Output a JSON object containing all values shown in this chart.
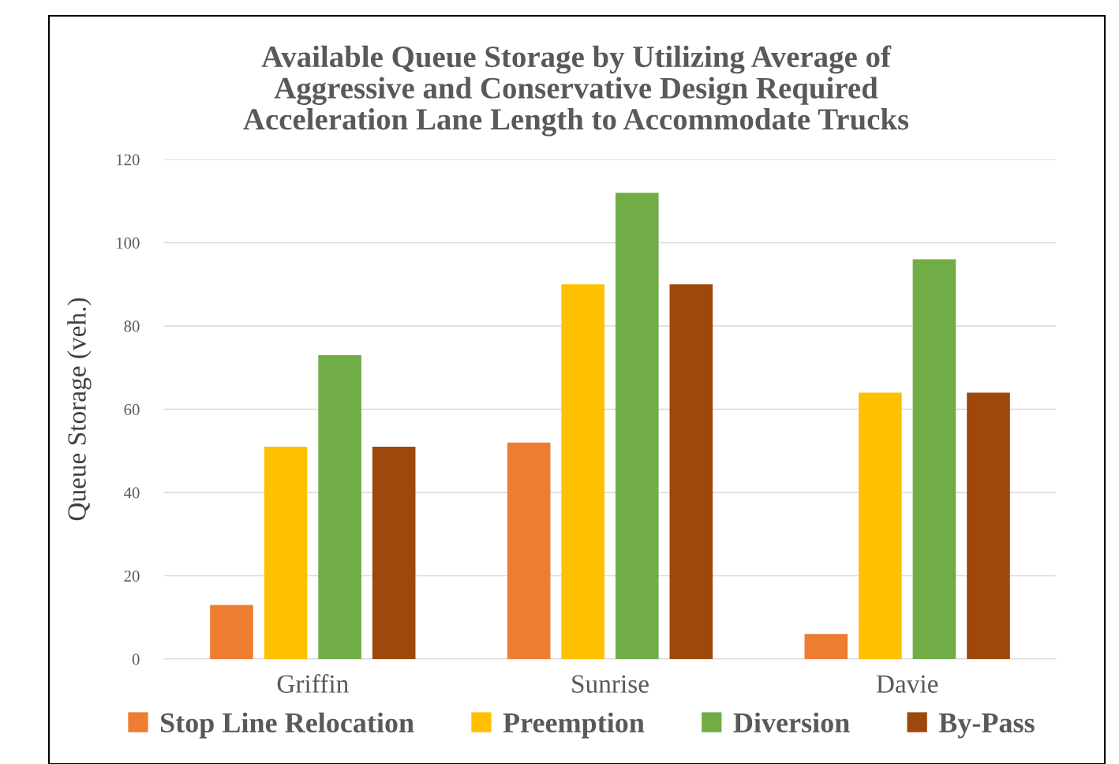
{
  "chart_data": {
    "type": "bar",
    "title": "Available Queue Storage by Utilizing Average of\nAggressive and Conservative Design Required\nAcceleration Lane Length to Accommodate Trucks",
    "ylabel": "Queue Storage (veh.)",
    "categories": [
      "Griffin",
      "Sunrise",
      "Davie"
    ],
    "series": [
      {
        "name": "Stop Line Relocation",
        "color": "#ed7d31",
        "values": [
          13,
          52,
          6
        ]
      },
      {
        "name": "Preemption",
        "color": "#ffc000",
        "values": [
          51,
          90,
          64
        ]
      },
      {
        "name": "Diversion",
        "color": "#70ad47",
        "values": [
          73,
          112,
          96
        ]
      },
      {
        "name": "By-Pass",
        "color": "#9e480e",
        "values": [
          51,
          90,
          64
        ]
      }
    ],
    "ylim": [
      0,
      120
    ],
    "yticks": [
      0,
      20,
      40,
      60,
      80,
      100,
      120
    ],
    "grid": "y",
    "legend": "bottom"
  }
}
